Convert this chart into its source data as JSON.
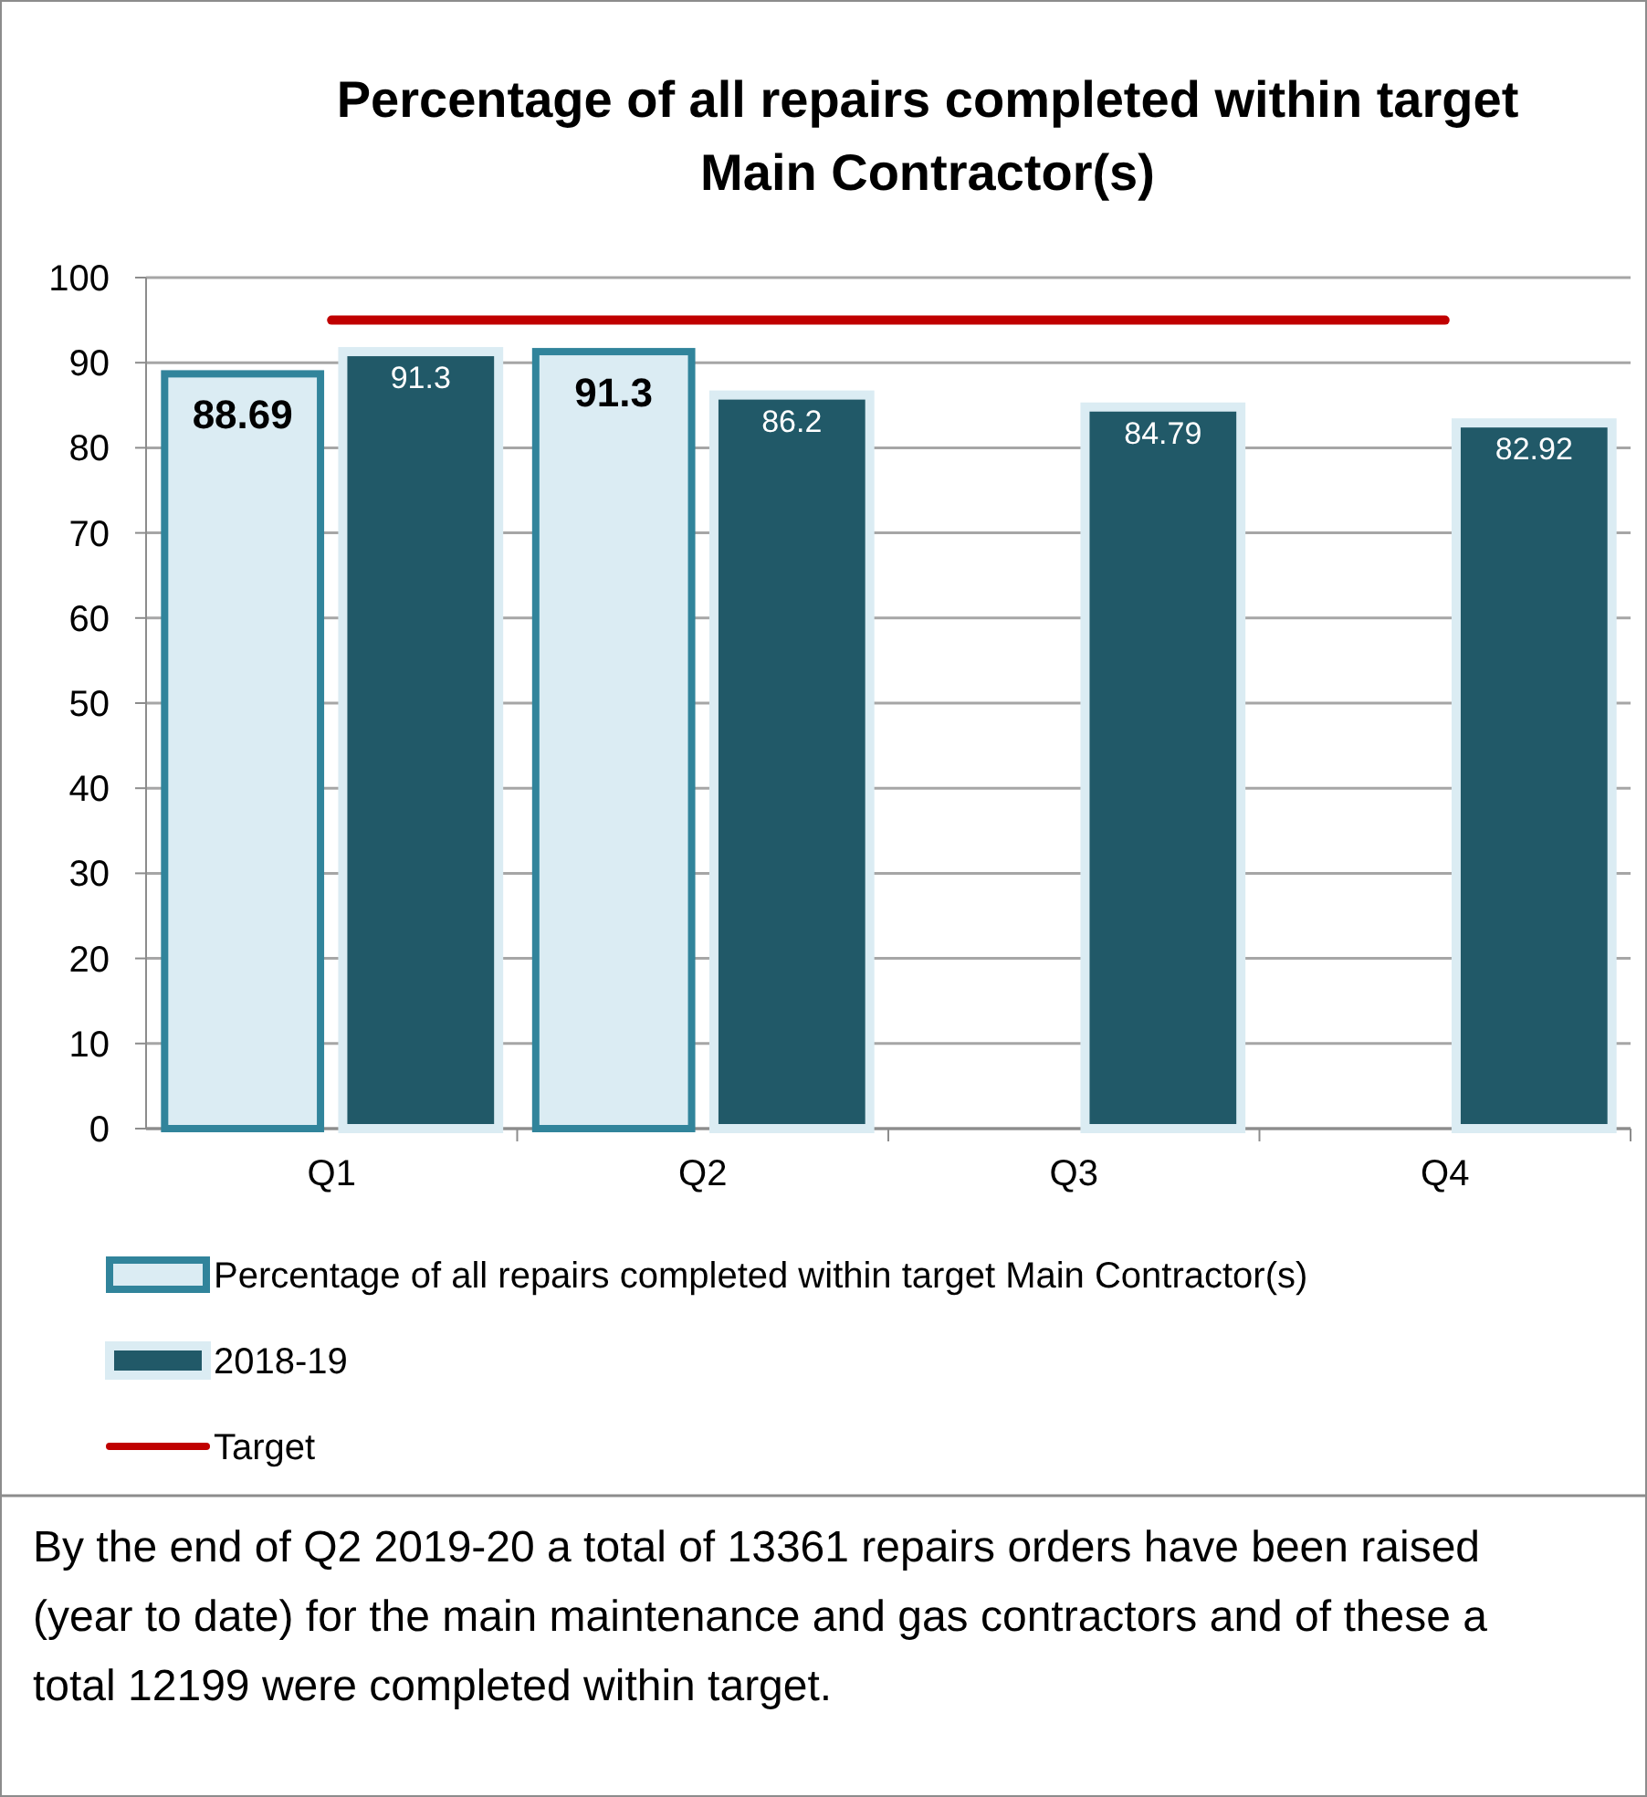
{
  "chart_data": {
    "type": "bar",
    "title": "Percentage of all repairs completed within target\nMain Contractor(s)",
    "categories": [
      "Q1",
      "Q2",
      "Q3",
      "Q4"
    ],
    "series": [
      {
        "name": "Percentage of all repairs completed within target Main Contractor(s)",
        "color": "#dbecf3",
        "values": [
          88.69,
          91.3,
          null,
          null
        ],
        "value_labels": [
          "88.69",
          "91.3",
          null,
          null
        ]
      },
      {
        "name": "2018-19",
        "color": "#215968",
        "values": [
          91.3,
          86.2,
          84.79,
          82.92
        ],
        "value_labels": [
          "91.3",
          "86.2",
          "84.79",
          "82.92"
        ]
      },
      {
        "name": "Target",
        "type": "line",
        "color": "#c00000",
        "values": [
          95,
          95,
          95,
          95
        ]
      }
    ],
    "ylim": [
      0,
      100
    ],
    "yticks": [
      0,
      10,
      20,
      30,
      40,
      50,
      60,
      70,
      80,
      90,
      100
    ],
    "grid": "y",
    "legend": "bottom",
    "annotations": [
      "By the end of Q2 2019-20 a total of 13361 repairs orders have been raised (year to date) for the main maintenance and gas contractors and of these a total 12199 were completed within target."
    ]
  }
}
